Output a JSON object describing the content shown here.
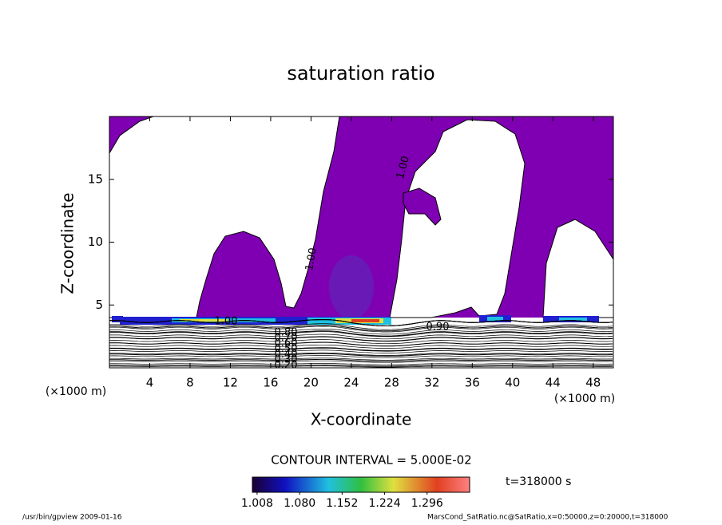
{
  "chart_data": {
    "type": "contour",
    "title": "saturation ratio",
    "x_label": "X-coordinate",
    "y_label": "Z-coordinate",
    "x_unit_label": "(×1000 m)",
    "xlim": [
      0,
      50
    ],
    "xticks": [
      4,
      8,
      12,
      16,
      20,
      24,
      28,
      32,
      36,
      40,
      44,
      48
    ],
    "ylim": [
      0,
      20
    ],
    "yticks": [
      5,
      10,
      15
    ],
    "fill_color": "#7f00b2",
    "contour_labels": [
      {
        "value": 1,
        "label": "1.00"
      },
      {
        "value": 0.9,
        "label": "0.90"
      },
      {
        "value": 0.8,
        "label": "0.80"
      },
      {
        "value": 0.7,
        "label": "0.70"
      },
      {
        "value": 0.6,
        "label": "0.60"
      },
      {
        "value": 0.5,
        "label": "0.50"
      },
      {
        "value": 0.4,
        "label": "0.40"
      },
      {
        "value": 0.3,
        "label": "0.30"
      },
      {
        "value": 0.2,
        "label": "0.20"
      },
      {
        "value": 1,
        "label": "1.00"
      },
      {
        "value": 1,
        "label": "1.00"
      }
    ],
    "contour_interval": "CONTOUR INTERVAL = 5.000E-02",
    "colorbar": {
      "lim": [
        1.0,
        1.368
      ],
      "ticks": [
        1.008,
        {
          "value": 1.08,
          "label": "1.080"
        },
        1.152,
        1.224,
        1.296
      ]
    },
    "time_label": "t=318000 s"
  },
  "footer": {
    "left": "/usr/bin/gpview   2009-01-16",
    "right": "MarsCond_SatRatio.nc@SatRatio,x=0:50000,z=0:20000,t=318000"
  }
}
